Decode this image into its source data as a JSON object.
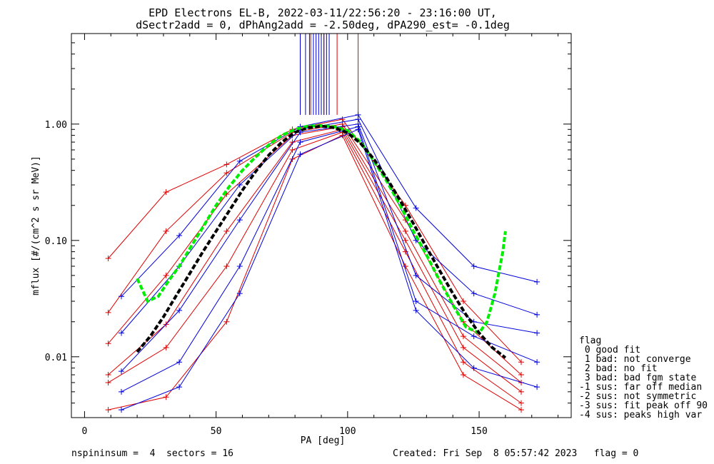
{
  "title_line1": "EPD Electrons EL-B, 2022-03-11/22:56:20 - 23:16:00 UT,",
  "title_line2": "dSectr2add = 0, dPhAng2add = -2.50deg, dPA290_est=  -0.1deg",
  "footer_left": "nspininsum =  4  sectors = 16",
  "footer_right": "Created: Fri Sep  8 05:57:42 2023   flag = 0",
  "flag_legend": {
    "title": "flag",
    "entries": [
      " 0 good fit",
      " 1 bad: not converge",
      " 2 bad: no fit",
      " 3 bad: bad fgm state",
      "-1 sus: far off median",
      "-2 sus: not symmetric",
      "-3 sus: fit peak off 90",
      "-4 sus: peaks high var"
    ]
  },
  "colors": {
    "red": "#e00000",
    "blue": "#0000dd",
    "green": "#00ee00",
    "black": "#000000"
  },
  "chart_data": {
    "type": "line",
    "xlabel": "PA [deg]",
    "ylabel": "mflux [#/(cm^2 s sr MeV)]",
    "xlim": [
      -5,
      185
    ],
    "ylim": [
      0.003,
      6.0
    ],
    "yscale": "log",
    "xticks": [
      0,
      50,
      100,
      150
    ],
    "yticks": [
      {
        "value": 0.01,
        "label": "0.01"
      },
      {
        "value": 0.1,
        "label": "0.10"
      },
      {
        "value": 1.0,
        "label": "1.00"
      }
    ],
    "series": [
      {
        "color": "red",
        "x": [
          9,
          31,
          54,
          79,
          98,
          122,
          144,
          166
        ],
        "y": [
          0.07,
          0.26,
          0.45,
          0.9,
          1.1,
          0.2,
          0.03,
          0.009
        ]
      },
      {
        "color": "red",
        "x": [
          9,
          31,
          54,
          79,
          98,
          122,
          144,
          166
        ],
        "y": [
          0.024,
          0.12,
          0.38,
          0.85,
          1.0,
          0.15,
          0.02,
          0.007
        ]
      },
      {
        "color": "red",
        "x": [
          9,
          31,
          54,
          79,
          98,
          122,
          144,
          166
        ],
        "y": [
          0.013,
          0.05,
          0.25,
          0.8,
          0.95,
          0.12,
          0.015,
          0.006
        ]
      },
      {
        "color": "red",
        "x": [
          9,
          31,
          54,
          79,
          98,
          122,
          144,
          166
        ],
        "y": [
          0.007,
          0.019,
          0.12,
          0.7,
          0.9,
          0.1,
          0.012,
          0.005
        ]
      },
      {
        "color": "red",
        "x": [
          9,
          31,
          54,
          79,
          98,
          122,
          144,
          166
        ],
        "y": [
          0.006,
          0.012,
          0.06,
          0.6,
          0.85,
          0.08,
          0.009,
          0.004
        ]
      },
      {
        "color": "red",
        "x": [
          9,
          31,
          54,
          79,
          98,
          122,
          144,
          166
        ],
        "y": [
          0.0035,
          0.0045,
          0.02,
          0.5,
          0.8,
          0.06,
          0.007,
          0.0035
        ]
      },
      {
        "color": "blue",
        "x": [
          14,
          36,
          59,
          82,
          104,
          126,
          148,
          172
        ],
        "y": [
          0.033,
          0.11,
          0.48,
          0.95,
          1.2,
          0.19,
          0.06,
          0.044
        ]
      },
      {
        "color": "blue",
        "x": [
          14,
          36,
          59,
          82,
          104,
          126,
          148,
          172
        ],
        "y": [
          0.016,
          0.06,
          0.3,
          0.9,
          1.1,
          0.1,
          0.035,
          0.023
        ]
      },
      {
        "color": "blue",
        "x": [
          14,
          36,
          59,
          82,
          104,
          126,
          148,
          172
        ],
        "y": [
          0.0075,
          0.025,
          0.15,
          0.85,
          1.0,
          0.05,
          0.02,
          0.016
        ]
      },
      {
        "color": "blue",
        "x": [
          14,
          36,
          59,
          82,
          104,
          126,
          148,
          172
        ],
        "y": [
          0.005,
          0.009,
          0.06,
          0.7,
          0.95,
          0.03,
          0.015,
          0.009
        ]
      },
      {
        "color": "blue",
        "x": [
          14,
          36,
          59,
          82,
          104,
          126,
          148,
          172
        ],
        "y": [
          0.0035,
          0.0055,
          0.035,
          0.55,
          0.9,
          0.025,
          0.008,
          0.0055
        ]
      }
    ],
    "fit_curves": [
      {
        "color": "green",
        "style": "dashed",
        "x": [
          20,
          24,
          28,
          32,
          36,
          40,
          45,
          50,
          55,
          60,
          65,
          70,
          75,
          80,
          85,
          90,
          95,
          100,
          105,
          110,
          115,
          120,
          125,
          130,
          135,
          140,
          145,
          150,
          153,
          156,
          159,
          160
        ],
        "y": [
          0.047,
          0.03,
          0.033,
          0.045,
          0.06,
          0.085,
          0.13,
          0.2,
          0.29,
          0.4,
          0.52,
          0.66,
          0.8,
          0.9,
          0.96,
          0.97,
          0.95,
          0.88,
          0.7,
          0.48,
          0.32,
          0.2,
          0.12,
          0.075,
          0.045,
          0.028,
          0.018,
          0.016,
          0.02,
          0.035,
          0.08,
          0.12
        ]
      },
      {
        "color": "black",
        "style": "dashed",
        "x": [
          20,
          25,
          30,
          35,
          40,
          45,
          50,
          55,
          60,
          65,
          70,
          75,
          80,
          85,
          90,
          95,
          100,
          105,
          110,
          115,
          120,
          125,
          130,
          135,
          140,
          145,
          150,
          155,
          160
        ],
        "y": [
          0.011,
          0.015,
          0.022,
          0.034,
          0.052,
          0.08,
          0.12,
          0.18,
          0.27,
          0.39,
          0.54,
          0.7,
          0.85,
          0.93,
          0.96,
          0.93,
          0.84,
          0.68,
          0.5,
          0.34,
          0.22,
          0.14,
          0.087,
          0.055,
          0.035,
          0.023,
          0.016,
          0.012,
          0.0098
        ]
      }
    ],
    "spikes": {
      "red": [
        82,
        86,
        91,
        96,
        104
      ],
      "blue": [
        82,
        84,
        85.5,
        87,
        88,
        89,
        90,
        91,
        92,
        93
      ]
    }
  }
}
